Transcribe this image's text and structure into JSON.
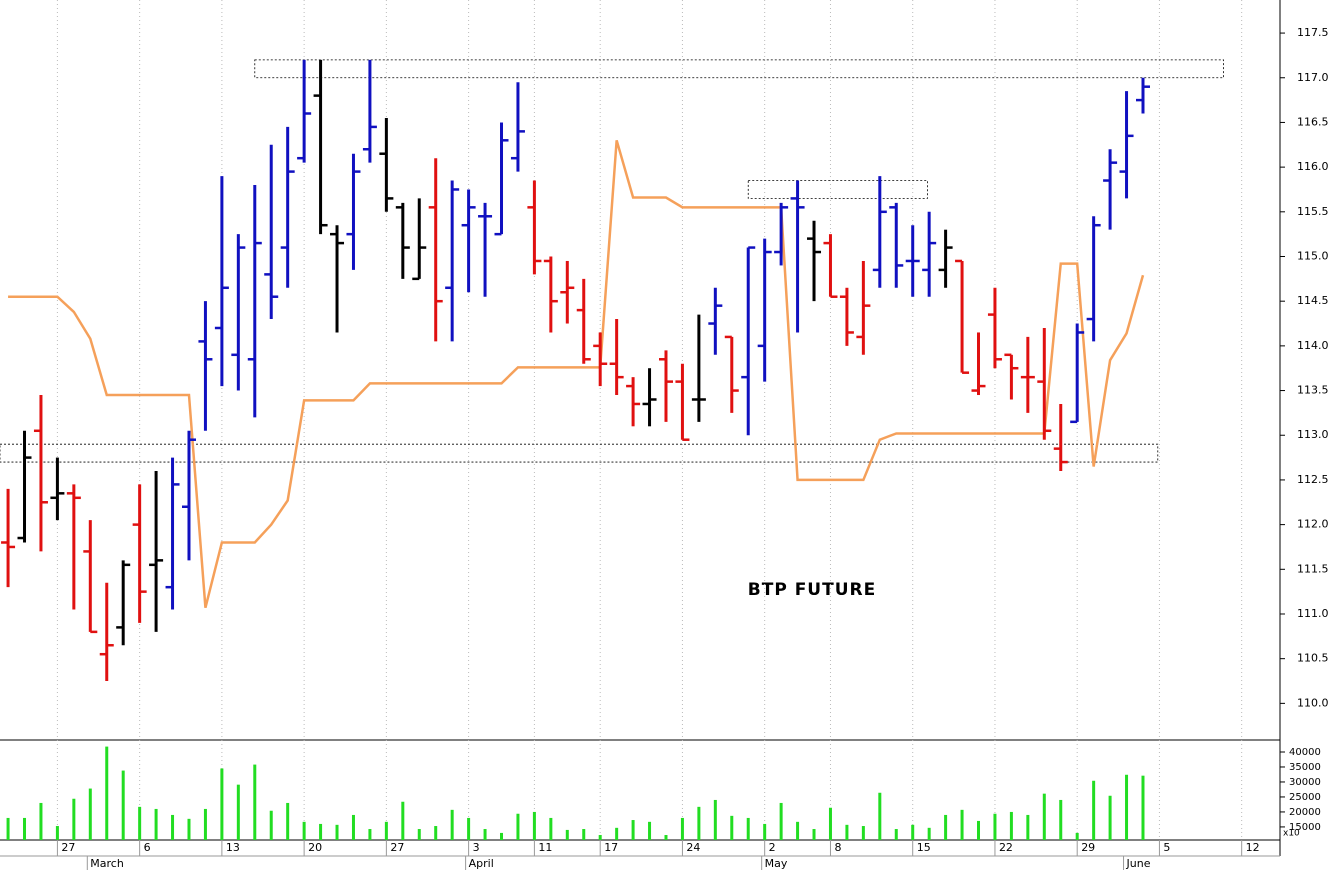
{
  "chart_data": {
    "type": "ohlc",
    "title": "BTP FUTURE",
    "open": [
      111.8,
      111.85,
      113.05,
      112.3,
      112.35,
      111.7,
      110.55,
      110.85,
      112.0,
      111.55,
      111.3,
      112.2,
      114.05,
      114.2,
      113.9,
      113.85,
      114.8,
      115.1,
      116.1,
      116.8,
      115.25,
      115.25,
      116.2,
      116.15,
      115.55,
      114.75,
      115.55,
      114.65,
      115.35,
      115.45,
      115.25,
      116.1,
      115.55,
      114.95,
      114.6,
      114.4,
      114.0,
      113.8,
      113.55,
      113.35,
      113.85,
      113.6,
      113.4,
      114.25,
      114.1,
      113.65,
      114.0,
      115.05,
      115.65,
      115.2,
      115.15,
      114.55,
      114.1,
      114.85,
      115.55,
      114.95,
      114.85,
      114.85,
      114.95,
      113.5,
      114.35,
      113.9,
      113.65,
      113.6,
      112.85,
      113.15,
      114.3,
      115.85,
      115.95,
      116.75
    ],
    "high": [
      112.4,
      113.05,
      113.45,
      112.75,
      112.45,
      112.05,
      111.35,
      111.6,
      112.45,
      112.6,
      112.75,
      113.05,
      114.5,
      115.9,
      115.25,
      115.8,
      116.25,
      116.45,
      117.2,
      117.2,
      115.35,
      116.15,
      117.2,
      116.55,
      115.6,
      115.65,
      116.1,
      115.85,
      115.75,
      115.6,
      116.5,
      116.95,
      115.85,
      115.0,
      114.95,
      114.75,
      114.15,
      114.3,
      113.65,
      113.75,
      113.95,
      113.8,
      114.35,
      114.65,
      114.1,
      115.1,
      115.2,
      115.6,
      115.85,
      115.4,
      115.25,
      114.65,
      114.95,
      115.9,
      115.6,
      115.35,
      115.5,
      115.3,
      114.95,
      114.15,
      114.65,
      113.9,
      114.1,
      114.2,
      113.35,
      114.25,
      115.45,
      116.2,
      116.85,
      117.0
    ],
    "low": [
      111.3,
      111.8,
      111.7,
      112.05,
      111.05,
      110.8,
      110.25,
      110.65,
      110.9,
      110.8,
      111.05,
      111.6,
      113.05,
      113.55,
      113.5,
      113.2,
      114.3,
      114.65,
      116.05,
      115.25,
      114.15,
      114.85,
      116.05,
      115.5,
      114.75,
      114.75,
      114.05,
      114.05,
      114.6,
      114.55,
      115.25,
      115.95,
      114.8,
      114.15,
      114.25,
      113.8,
      113.55,
      113.45,
      113.1,
      113.1,
      113.15,
      112.95,
      113.15,
      113.9,
      113.25,
      113.0,
      113.6,
      114.9,
      114.15,
      114.5,
      114.55,
      114.0,
      113.9,
      114.65,
      114.65,
      114.55,
      114.55,
      114.65,
      113.7,
      113.45,
      113.75,
      113.4,
      113.25,
      112.95,
      112.6,
      113.15,
      114.05,
      115.3,
      115.65,
      116.6
    ],
    "close": [
      111.75,
      112.75,
      112.25,
      112.35,
      112.3,
      110.8,
      110.65,
      111.55,
      111.25,
      111.6,
      112.45,
      112.95,
      113.85,
      114.65,
      115.1,
      115.15,
      114.55,
      115.95,
      116.6,
      115.35,
      115.15,
      115.95,
      116.45,
      115.65,
      115.1,
      115.1,
      114.5,
      115.75,
      115.55,
      115.45,
      116.3,
      116.4,
      114.95,
      114.5,
      114.65,
      113.85,
      113.8,
      113.65,
      113.35,
      113.4,
      113.6,
      112.95,
      113.4,
      114.45,
      113.5,
      115.1,
      115.05,
      115.55,
      115.55,
      115.05,
      114.55,
      114.15,
      114.45,
      115.5,
      114.9,
      114.95,
      115.15,
      115.1,
      113.7,
      113.55,
      113.85,
      113.75,
      113.65,
      113.05,
      112.7,
      114.15,
      115.35,
      116.05,
      116.35,
      116.9
    ],
    "colors": [
      "#e01010",
      "#000000",
      "#e01010",
      "#000000",
      "#e01010",
      "#e01010",
      "#e01010",
      "#000000",
      "#e01010",
      "#000000",
      "#1010c0",
      "#1010c0",
      "#1010c0",
      "#1010c0",
      "#1010c0",
      "#1010c0",
      "#1010c0",
      "#1010c0",
      "#1010c0",
      "#000000",
      "#000000",
      "#1010c0",
      "#1010c0",
      "#000000",
      "#000000",
      "#000000",
      "#e01010",
      "#1010c0",
      "#1010c0",
      "#1010c0",
      "#1010c0",
      "#1010c0",
      "#e01010",
      "#e01010",
      "#e01010",
      "#e01010",
      "#e01010",
      "#e01010",
      "#e01010",
      "#000000",
      "#e01010",
      "#e01010",
      "#000000",
      "#1010c0",
      "#e01010",
      "#1010c0",
      "#1010c0",
      "#1010c0",
      "#1010c0",
      "#000000",
      "#e01010",
      "#e01010",
      "#e01010",
      "#1010c0",
      "#1010c0",
      "#1010c0",
      "#1010c0",
      "#000000",
      "#e01010",
      "#e01010",
      "#e01010",
      "#e01010",
      "#e01010",
      "#e01010",
      "#e01010",
      "#1010c0",
      "#1010c0",
      "#1010c0",
      "#1010c0",
      "#1010c0"
    ],
    "line": {
      "color": "#f5a05a",
      "values": [
        114.55,
        114.55,
        114.55,
        114.55,
        114.38,
        114.08,
        113.45,
        113.45,
        113.45,
        113.45,
        113.45,
        113.45,
        111.07,
        111.8,
        111.8,
        111.8,
        112.0,
        112.27,
        113.39,
        113.39,
        113.39,
        113.39,
        113.58,
        113.58,
        113.58,
        113.58,
        113.58,
        113.58,
        113.58,
        113.58,
        113.58,
        113.76,
        113.76,
        113.76,
        113.76,
        113.76,
        113.76,
        116.3,
        115.66,
        115.66,
        115.66,
        115.55,
        115.55,
        115.55,
        115.55,
        115.55,
        115.55,
        115.55,
        112.5,
        112.5,
        112.5,
        112.5,
        112.5,
        112.95,
        113.02,
        113.02,
        113.02,
        113.02,
        113.02,
        113.02,
        113.02,
        113.02,
        113.02,
        113.02,
        114.92,
        114.92,
        112.65,
        113.84,
        114.14,
        114.79
      ]
    },
    "volume": {
      "color": "#22dd22",
      "values": [
        18000,
        18000,
        23000,
        15300,
        24400,
        27800,
        41800,
        33800,
        21700,
        21000,
        19000,
        17700,
        21000,
        34500,
        29100,
        35800,
        20400,
        23000,
        16700,
        16000,
        15700,
        19000,
        14300,
        16700,
        23400,
        14300,
        15300,
        20700,
        18000,
        14300,
        13000,
        19400,
        20000,
        18000,
        14000,
        14300,
        12300,
        14700,
        17300,
        16700,
        12300,
        18000,
        21700,
        24000,
        18700,
        18000,
        16000,
        23000,
        16700,
        14300,
        21400,
        15700,
        15300,
        26400,
        14300,
        15700,
        14700,
        19000,
        20700,
        17000,
        19400,
        20000,
        19000,
        26100,
        24000,
        13000,
        30400,
        25400,
        32400,
        32100
      ],
      "ylim": [
        10640,
        44000
      ],
      "yticks": [
        15000,
        20000,
        25000,
        30000,
        35000,
        40000
      ],
      "axis_note": "x10"
    },
    "zones": [
      {
        "x": [
          15.0,
          73.9
        ],
        "y": [
          117.0,
          117.2
        ]
      },
      {
        "x": [
          45.0,
          55.9
        ],
        "y": [
          115.65,
          115.85
        ]
      },
      {
        "x": [
          -0.49,
          69.9
        ],
        "y": [
          112.7,
          112.9
        ]
      }
    ],
    "ylim": [
      109.59,
      117.87
    ],
    "yticks": [
      {
        "value": 110.0,
        "label": "110.0"
      },
      {
        "value": 110.5,
        "label": "110.5"
      },
      {
        "value": 111.0,
        "label": "111.0"
      },
      {
        "value": 111.5,
        "label": "111.5"
      },
      {
        "value": 112.0,
        "label": "112.0"
      },
      {
        "value": 112.5,
        "label": "112.5"
      },
      {
        "value": 113.0,
        "label": "113.0"
      },
      {
        "value": 113.5,
        "label": "113.5"
      },
      {
        "value": 114.0,
        "label": "114.0"
      },
      {
        "value": 114.5,
        "label": "114.5"
      },
      {
        "value": 115.0,
        "label": "115.0"
      },
      {
        "value": 115.5,
        "label": "115.5"
      },
      {
        "value": 116.0,
        "label": "116.0"
      },
      {
        "value": 116.5,
        "label": "116.5"
      },
      {
        "value": 117.0,
        "label": "117.0"
      },
      {
        "value": 117.5,
        "label": "117.5"
      }
    ],
    "xlim": [
      -0.49,
      77.33
    ],
    "xticks": [
      {
        "value": 3,
        "label": "27"
      },
      {
        "value": 8,
        "label": "6"
      },
      {
        "value": 13,
        "label": "13"
      },
      {
        "value": 18,
        "label": "20"
      },
      {
        "value": 23,
        "label": "27"
      },
      {
        "value": 28,
        "label": "3"
      },
      {
        "value": 32,
        "label": "11"
      },
      {
        "value": 36,
        "label": "17"
      },
      {
        "value": 41,
        "label": "24"
      },
      {
        "value": 46,
        "label": "2"
      },
      {
        "value": 50,
        "label": "8"
      },
      {
        "value": 55,
        "label": "15"
      },
      {
        "value": 60,
        "label": "22"
      },
      {
        "value": 65,
        "label": "29"
      },
      {
        "value": 70,
        "label": "5"
      },
      {
        "value": 75,
        "label": "12"
      }
    ],
    "months": [
      {
        "value": 5,
        "label": "March"
      },
      {
        "value": 28,
        "label": "April"
      },
      {
        "value": 46,
        "label": "May"
      },
      {
        "value": 68,
        "label": "June"
      }
    ],
    "grid": true
  }
}
